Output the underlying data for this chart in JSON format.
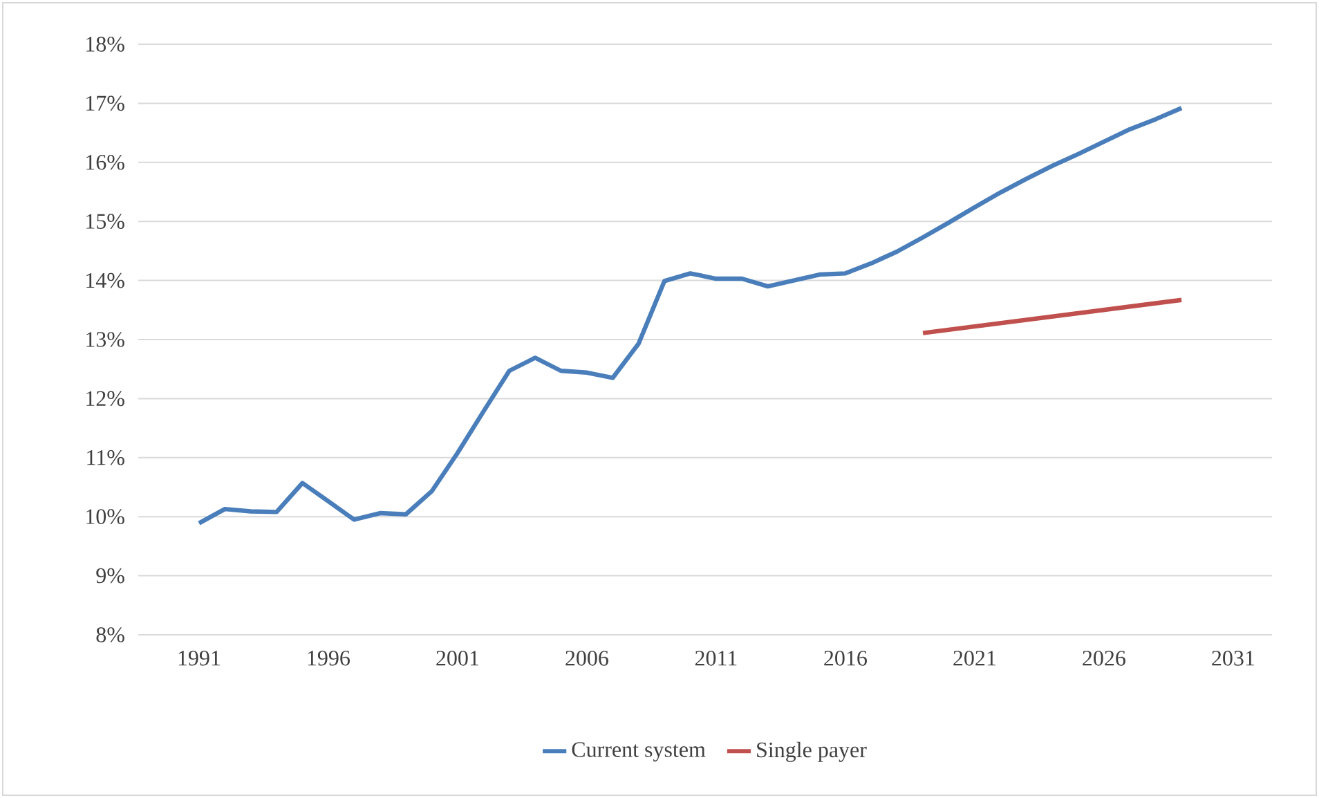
{
  "chart_data": {
    "type": "line",
    "x": [
      1991,
      1992,
      1993,
      1994,
      1995,
      1996,
      1997,
      1998,
      1999,
      2000,
      2001,
      2002,
      2003,
      2004,
      2005,
      2006,
      2007,
      2008,
      2009,
      2010,
      2011,
      2012,
      2013,
      2014,
      2015,
      2016,
      2017,
      2018,
      2019,
      2020,
      2021,
      2022,
      2023,
      2024,
      2025,
      2026,
      2027,
      2028,
      2029
    ],
    "series": [
      {
        "name": "Current system",
        "color": "#4a7ebb",
        "values": [
          9.89,
          10.13,
          10.09,
          10.08,
          10.57,
          10.26,
          9.95,
          10.06,
          10.04,
          10.43,
          11.08,
          11.78,
          12.47,
          12.69,
          12.47,
          12.44,
          12.35,
          12.93,
          13.99,
          14.12,
          14.03,
          14.03,
          13.9,
          14.0,
          14.1,
          14.12,
          14.29,
          14.49,
          14.73,
          14.98,
          15.24,
          15.49,
          15.72,
          15.94,
          16.14,
          16.35,
          16.56,
          16.73,
          16.92
        ]
      },
      {
        "name": "Single payer",
        "color": "#c0504d",
        "x": [
          2019,
          2029
        ],
        "values": [
          13.11,
          13.67
        ]
      }
    ],
    "xlim": [
      1988.65,
      2032.5
    ],
    "xticks": [
      1991,
      1996,
      2001,
      2006,
      2011,
      2016,
      2021,
      2026,
      2031
    ],
    "ylim": [
      8,
      18
    ],
    "yticks": [
      {
        "value": 8,
        "label": "8%"
      },
      {
        "value": 9,
        "label": "9%"
      },
      {
        "value": 10,
        "label": "10%"
      },
      {
        "value": 11,
        "label": "11%"
      },
      {
        "value": 12,
        "label": "12%"
      },
      {
        "value": 13,
        "label": "13%"
      },
      {
        "value": 14,
        "label": "14%"
      },
      {
        "value": 15,
        "label": "15%"
      },
      {
        "value": 16,
        "label": "16%"
      },
      {
        "value": 17,
        "label": "17%"
      },
      {
        "value": 18,
        "label": "18%"
      }
    ],
    "grid": "y",
    "legend": "bottom",
    "marker": "none",
    "line_style": "solid"
  }
}
